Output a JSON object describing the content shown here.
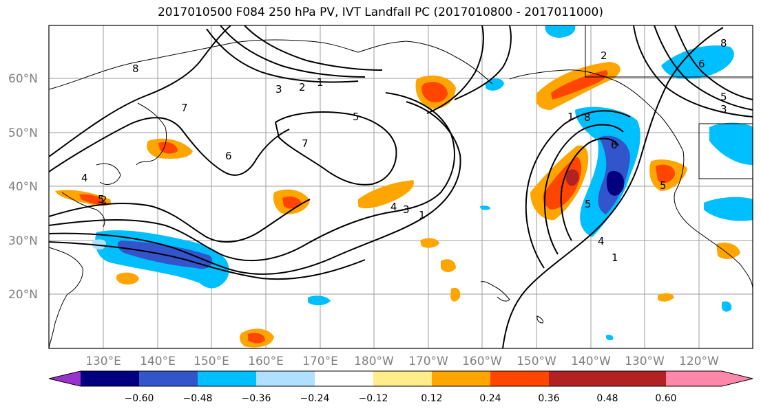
{
  "title": "2017010500 F084 250 hPa PV, IVT Landfall PC (2017010800 - 2017011000)",
  "lat_ticks": [
    "60°N",
    "50°N",
    "40°N",
    "30°N",
    "20°N"
  ],
  "lon_ticks": [
    "130°E",
    "140°E",
    "150°E",
    "160°E",
    "170°E",
    "180°W",
    "170°W",
    "160°W",
    "150°W",
    "140°W",
    "130°W",
    "120°W"
  ],
  "contour_labels": [
    "8",
    "7",
    "6",
    "5",
    "4",
    "3",
    "2",
    "1",
    "7",
    "5",
    "4",
    "3",
    "1",
    "5",
    "1",
    "2",
    "8",
    "6",
    "5",
    "3",
    "8",
    "6",
    "1",
    "4",
    "5",
    "2"
  ],
  "colorbar": {
    "colors": [
      "#9933cc",
      "#000080",
      "#3355cc",
      "#00bfff",
      "#b0e0ff",
      "#ffffff",
      "#ffec8b",
      "#ffa500",
      "#ff4500",
      "#b22222",
      "#ff88aa"
    ],
    "labels": [
      "−0.60",
      "−0.48",
      "−0.36",
      "−0.24",
      "−0.12",
      "0.12",
      "0.24",
      "0.36",
      "0.48",
      "0.60"
    ]
  }
}
